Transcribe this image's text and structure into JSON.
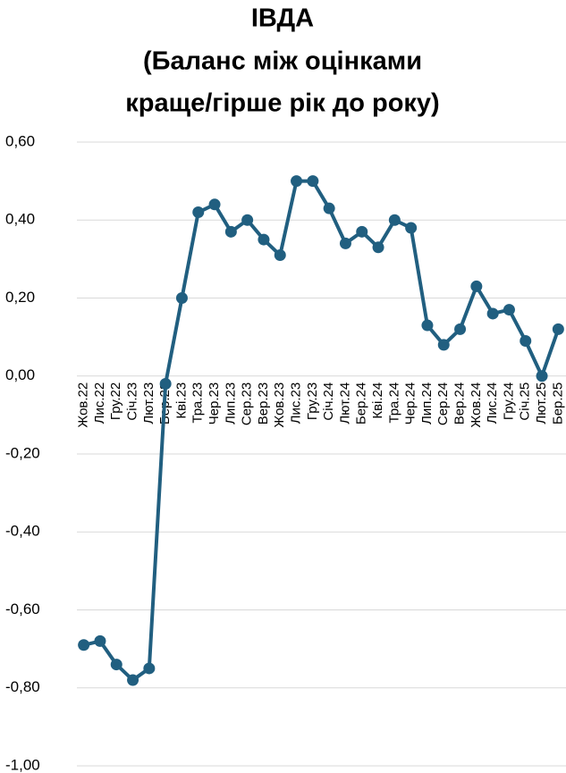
{
  "chart_data": {
    "type": "line",
    "title": [
      "ІВДА",
      "(Баланс між оцінками",
      "краще/гірше рік до року)"
    ],
    "categories": [
      "Жов.22",
      "Лис.22",
      "Гру.22",
      "Січ.23",
      "Лют.23",
      "Бер.23",
      "Кві.23",
      "Тра.23",
      "Чер.23",
      "Лип.23",
      "Сер.23",
      "Вер.23",
      "Жов.23",
      "Лис.23",
      "Гру.23",
      "Січ.24",
      "Лют.24",
      "Бер.24",
      "Кві.24",
      "Тра.24",
      "Чер.24",
      "Лип.24",
      "Сер.24",
      "Вер.24",
      "Жов.24",
      "Лис.24",
      "Гру.24",
      "Січ.25",
      "Лют.25",
      "Бер.25"
    ],
    "series": [
      {
        "name": "ІВДА",
        "color": "#215f80",
        "values": [
          -0.69,
          -0.68,
          -0.74,
          -0.78,
          -0.75,
          -0.02,
          0.2,
          0.42,
          0.44,
          0.37,
          0.4,
          0.35,
          0.31,
          0.5,
          0.5,
          0.43,
          0.34,
          0.37,
          0.33,
          0.4,
          0.38,
          0.13,
          0.08,
          0.12,
          0.23,
          0.16,
          0.17,
          0.09,
          0.0,
          0.12
        ]
      }
    ],
    "ylim": [
      -1,
      0.6
    ],
    "yticks": [
      {
        "value": -1,
        "label": "-1,00"
      },
      {
        "value": -0.8,
        "label": "-0,80"
      },
      {
        "value": -0.6,
        "label": "-0,60"
      },
      {
        "value": -0.4,
        "label": "-0,40"
      },
      {
        "value": -0.2,
        "label": "-0,20"
      },
      {
        "value": 0,
        "label": "0,00"
      },
      {
        "value": 0.2,
        "label": "0,20"
      },
      {
        "value": 0.4,
        "label": "0,40"
      },
      {
        "value": 0.6,
        "label": "0,60"
      }
    ],
    "grid": true
  }
}
